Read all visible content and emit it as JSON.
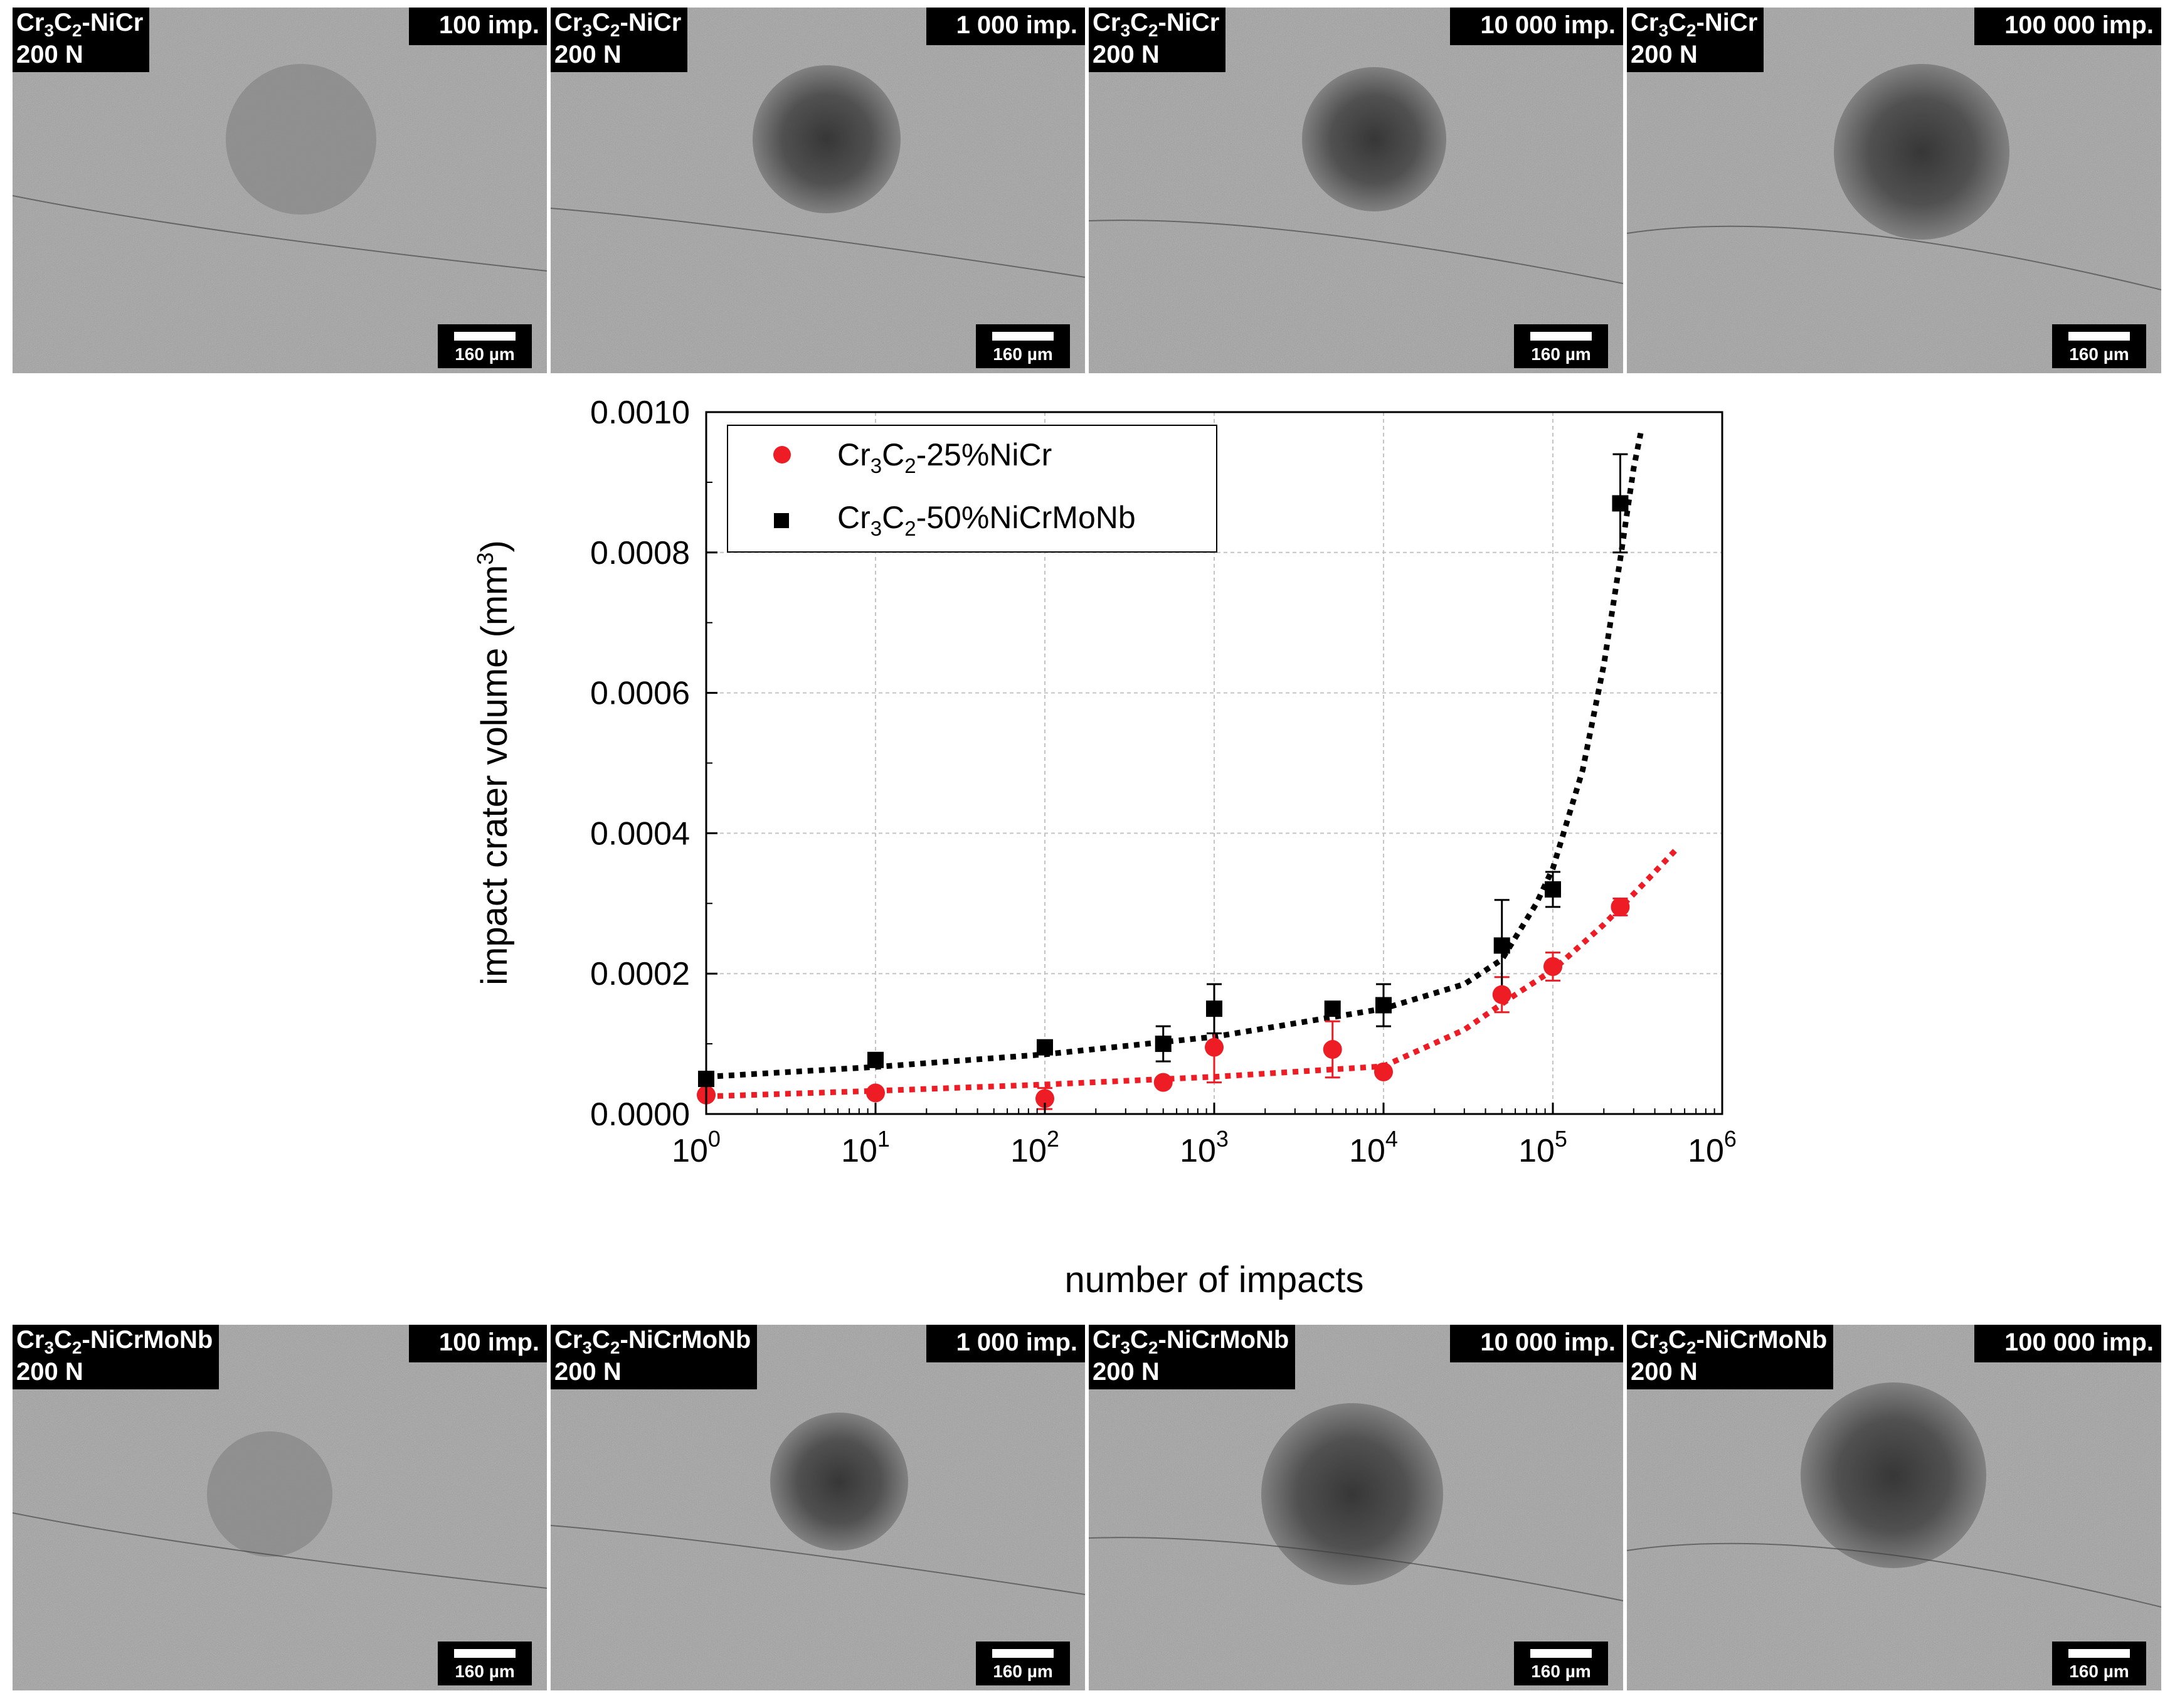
{
  "micrographs": {
    "top": [
      {
        "material_base": "Cr",
        "material_sub1": "3",
        "material_mid": "C",
        "material_sub2": "2",
        "material_rest": "-NiCr",
        "load": "200 N",
        "impacts": "100 imp.",
        "scale": "160 µm"
      },
      {
        "material_base": "Cr",
        "material_sub1": "3",
        "material_mid": "C",
        "material_sub2": "2",
        "material_rest": "-NiCr",
        "load": "200 N",
        "impacts": "1 000 imp.",
        "scale": "160 µm"
      },
      {
        "material_base": "Cr",
        "material_sub1": "3",
        "material_mid": "C",
        "material_sub2": "2",
        "material_rest": "-NiCr",
        "load": "200 N",
        "impacts": "10 000 imp.",
        "scale": "160 µm"
      },
      {
        "material_base": "Cr",
        "material_sub1": "3",
        "material_mid": "C",
        "material_sub2": "2",
        "material_rest": "-NiCr",
        "load": "200 N",
        "impacts": "100 000 imp.",
        "scale": "160 µm"
      }
    ],
    "bottom": [
      {
        "material_base": "Cr",
        "material_sub1": "3",
        "material_mid": "C",
        "material_sub2": "2",
        "material_rest": "-NiCrMoNb",
        "load": "200 N",
        "impacts": "100 imp.",
        "scale": "160 µm"
      },
      {
        "material_base": "Cr",
        "material_sub1": "3",
        "material_mid": "C",
        "material_sub2": "2",
        "material_rest": "-NiCrMoNb",
        "load": "200 N",
        "impacts": "1 000 imp.",
        "scale": "160 µm"
      },
      {
        "material_base": "Cr",
        "material_sub1": "3",
        "material_mid": "C",
        "material_sub2": "2",
        "material_rest": "-NiCrMoNb",
        "load": "200 N",
        "impacts": "10 000 imp.",
        "scale": "160 µm"
      },
      {
        "material_base": "Cr",
        "material_sub1": "3",
        "material_mid": "C",
        "material_sub2": "2",
        "material_rest": "-NiCrMoNb",
        "load": "200 N",
        "impacts": "100 000 imp.",
        "scale": "160 µm"
      }
    ]
  },
  "chart_data": {
    "type": "scatter",
    "xlabel": "number of impacts",
    "ylabel": "impact crater volume (mm",
    "ylabel_sup": "3",
    "ylabel_end": ")",
    "x_scale": "log",
    "xlim": [
      1,
      1000000
    ],
    "ylim": [
      0,
      0.001
    ],
    "x_ticks": [
      {
        "base": "10",
        "exp": "0"
      },
      {
        "base": "10",
        "exp": "1"
      },
      {
        "base": "10",
        "exp": "2"
      },
      {
        "base": "10",
        "exp": "3"
      },
      {
        "base": "10",
        "exp": "4"
      },
      {
        "base": "10",
        "exp": "5"
      },
      {
        "base": "10",
        "exp": "6"
      }
    ],
    "y_ticks": [
      "0.0000",
      "0.0002",
      "0.0004",
      "0.0006",
      "0.0008",
      "0.0010"
    ],
    "y_tick_values": [
      0,
      0.0002,
      0.0004,
      0.0006,
      0.0008,
      0.001
    ],
    "grid": true,
    "legend_position": "top-left",
    "series": [
      {
        "legend": {
          "base": "Cr",
          "sub1": "3",
          "mid": "C",
          "sub2": "2",
          "rest": "-25%NiCr"
        },
        "color": "#ee1c24",
        "marker": "circle",
        "x": [
          1,
          10,
          100,
          500,
          1000,
          5000,
          10000,
          50000,
          100000,
          250000
        ],
        "y": [
          2.7e-05,
          3e-05,
          2.2e-05,
          4.5e-05,
          9.5e-05,
          9.2e-05,
          6e-05,
          0.00017,
          0.00021,
          0.000295
        ],
        "err": [
          3e-06,
          4e-06,
          1.5e-05,
          6e-06,
          5e-05,
          4e-05,
          5e-06,
          2.5e-05,
          2e-05,
          1.2e-05
        ],
        "fit_x": [
          1,
          10,
          100,
          1000,
          10000,
          30000,
          60000,
          100000,
          200000,
          350000,
          550000
        ],
        "fit_y": [
          2.5e-05,
          3.3e-05,
          4.2e-05,
          5.3e-05,
          6.8e-05,
          0.00012,
          0.00017,
          0.000205,
          0.00027,
          0.00033,
          0.00038
        ]
      },
      {
        "legend": {
          "base": "Cr",
          "sub1": "3",
          "mid": "C",
          "sub2": "2",
          "rest": "-50%NiCrMoNb"
        },
        "color": "#000000",
        "marker": "square",
        "x": [
          1,
          10,
          100,
          500,
          1000,
          5000,
          10000,
          50000,
          100000,
          250000
        ],
        "y": [
          5e-05,
          7.7e-05,
          9.5e-05,
          0.0001,
          0.00015,
          0.00015,
          0.000155,
          0.00024,
          0.00032,
          0.00087
        ],
        "err": [
          4e-06,
          5e-06,
          1e-05,
          2.5e-05,
          3.5e-05,
          8e-06,
          3e-05,
          6.5e-05,
          2.5e-05,
          7e-05
        ],
        "fit_x": [
          1,
          10,
          100,
          1000,
          10000,
          30000,
          50000,
          80000,
          100000,
          150000,
          200000,
          250000,
          300000,
          330000
        ],
        "fit_y": [
          5.3e-05,
          6.7e-05,
          8.5e-05,
          0.00011,
          0.00015,
          0.000185,
          0.00022,
          0.0003,
          0.00035,
          0.00049,
          0.00064,
          0.00079,
          0.00092,
          0.00097
        ]
      }
    ]
  }
}
